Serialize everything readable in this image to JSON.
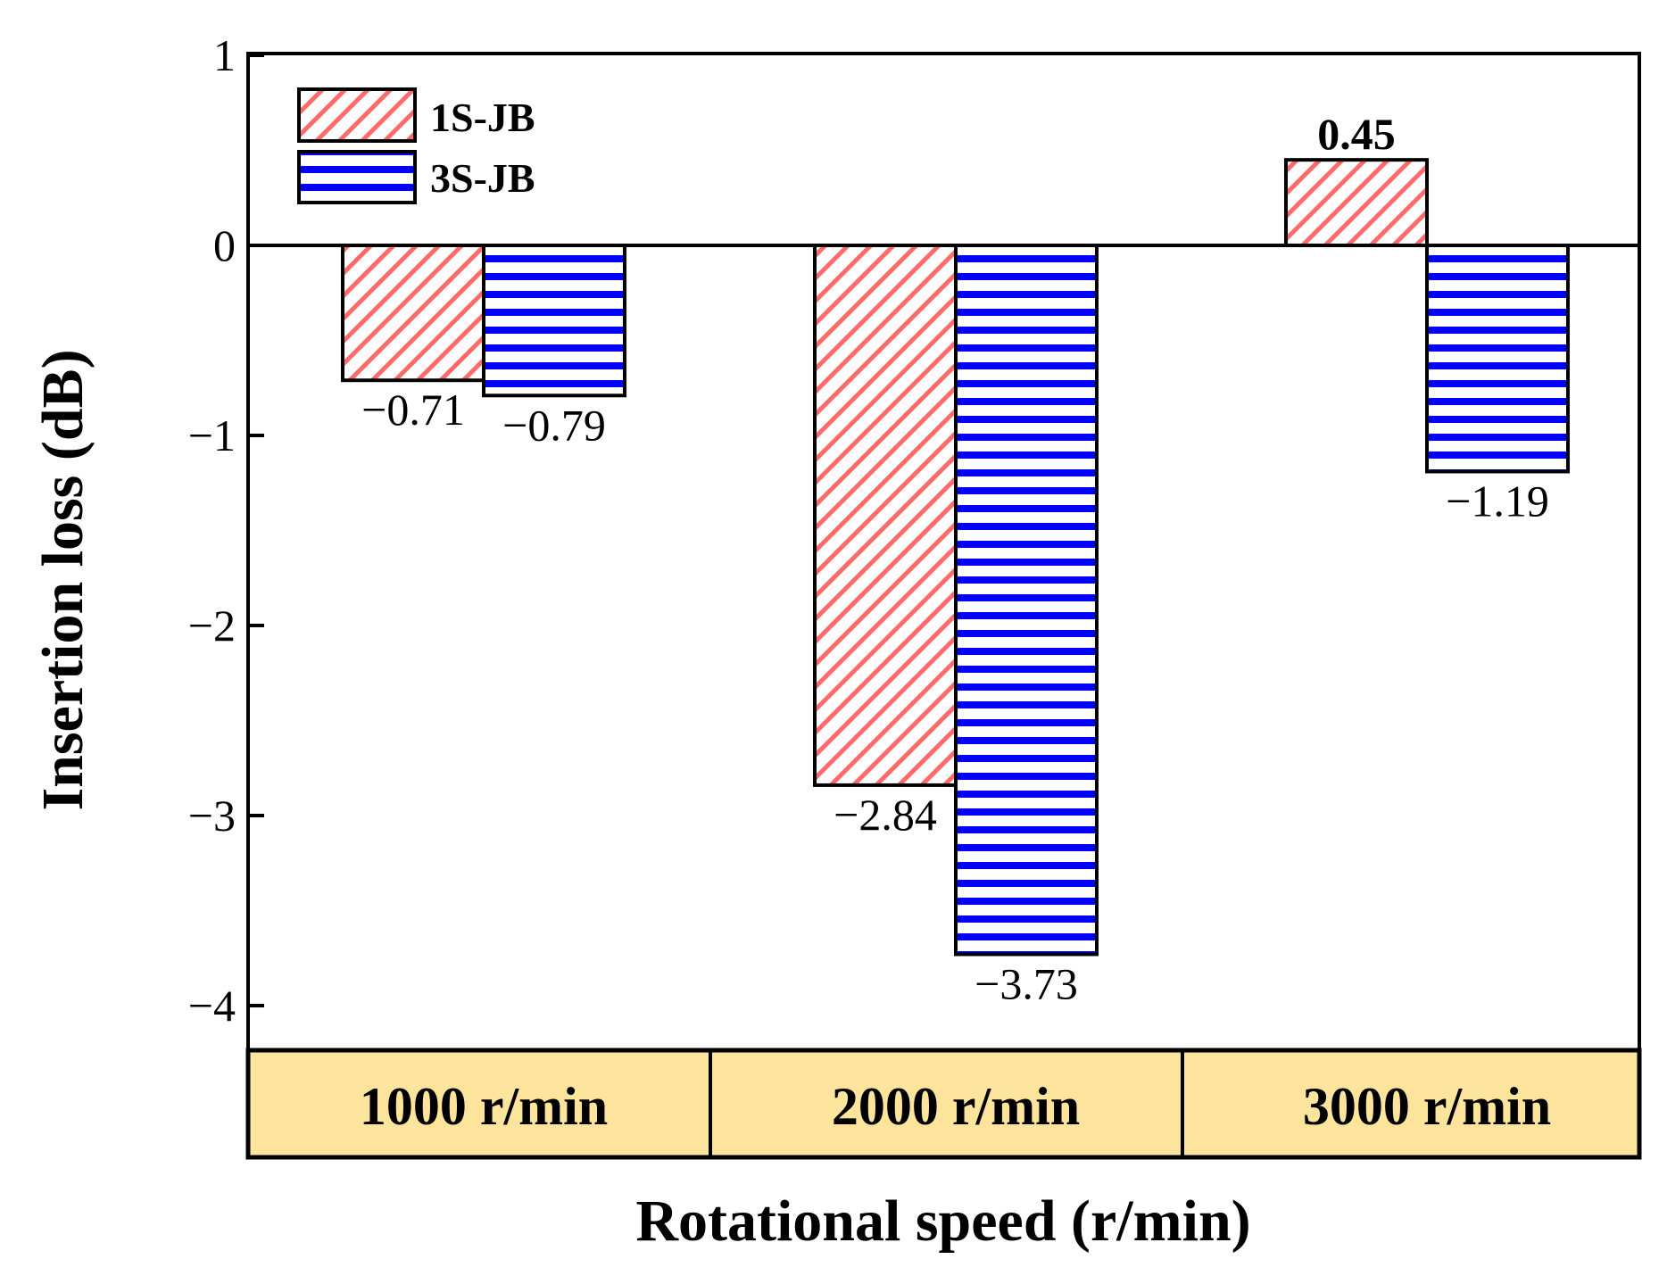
{
  "chart_data": {
    "type": "bar",
    "categories": [
      "1000 r/min",
      "2000 r/min",
      "3000 r/min"
    ],
    "series": [
      {
        "name": "1S-JB",
        "values": [
          -0.71,
          -2.84,
          0.45
        ],
        "labels": [
          "−0.71",
          "−2.84",
          "0.45"
        ],
        "color": "#ff6b6b",
        "pattern": "diagonal"
      },
      {
        "name": "3S-JB",
        "values": [
          -0.79,
          -3.73,
          -1.19
        ],
        "labels": [
          "−0.79",
          "−3.73",
          "−1.19"
        ],
        "color": "#0000ff",
        "pattern": "horizontal"
      }
    ],
    "xlabel": "Rotational speed (r/min)",
    "ylabel": "Insertion loss (dB)",
    "ylim": [
      -4.2,
      1
    ],
    "yticks": [
      1,
      0,
      -1,
      -2,
      -3,
      -4
    ],
    "ytick_labels": [
      "1",
      "0",
      "−1",
      "−2",
      "−3",
      "−4"
    ],
    "category_band_color": "#fde49c",
    "legend_position": "top-left",
    "grid": false
  }
}
